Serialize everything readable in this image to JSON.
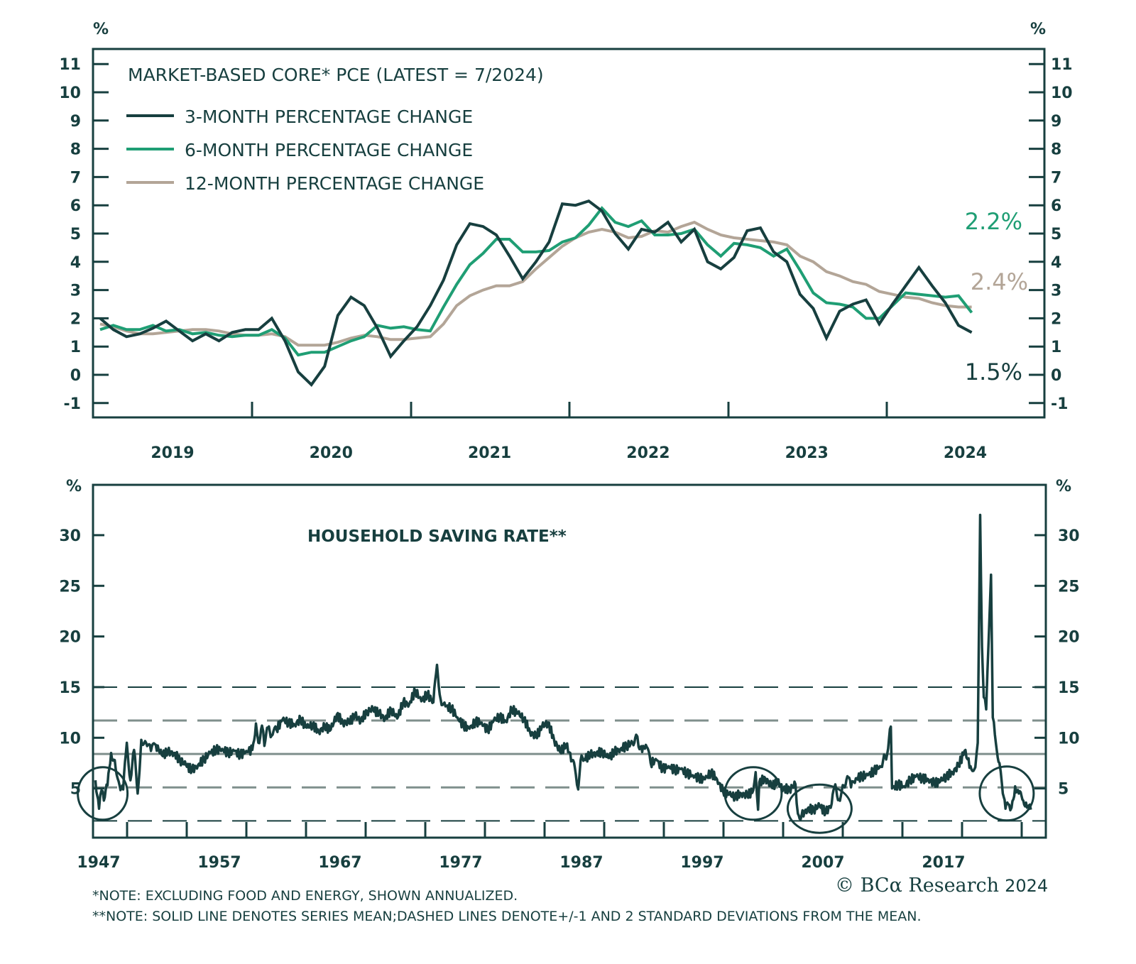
{
  "colors": {
    "dark": "#173f3f",
    "green": "#1f9e74",
    "taupe": "#b3a597",
    "grey_line": "#7f8f8c"
  },
  "chart_data": [
    {
      "type": "line",
      "title": "MARKET-BASED CORE* PCE (LATEST = 7/2024)",
      "ylabel_left": "%",
      "ylabel_right": "%",
      "ylim": [
        -1,
        11
      ],
      "yticks": [
        "11",
        "10",
        "9",
        "8",
        "7",
        "6",
        "5",
        "4",
        "3",
        "2",
        "1",
        "0",
        "-1"
      ],
      "x_tick_labels": [
        "2019",
        "2020",
        "2021",
        "2022",
        "2023",
        "2024"
      ],
      "x_start": "2019-01",
      "x_end": "2024-07",
      "frequency": "monthly",
      "legend_placement": "top-left",
      "series": [
        {
          "name": "3-MONTH PERCENTAGE CHANGE",
          "color_key": "dark",
          "values": [
            2.0,
            1.6,
            1.35,
            1.45,
            1.65,
            1.9,
            1.55,
            1.2,
            1.45,
            1.2,
            1.5,
            1.6,
            1.6,
            2.0,
            1.2,
            0.1,
            -0.35,
            0.3,
            2.1,
            2.75,
            2.45,
            1.65,
            0.65,
            1.2,
            1.7,
            2.45,
            3.35,
            4.6,
            5.35,
            5.25,
            4.95,
            4.2,
            3.4,
            4.0,
            4.7,
            6.05,
            6.0,
            6.15,
            5.8,
            5.0,
            4.45,
            5.15,
            5.05,
            5.4,
            4.7,
            5.15,
            4.0,
            3.75,
            4.15,
            5.1,
            5.2,
            4.35,
            4.0,
            2.85,
            2.35,
            1.3,
            2.25,
            2.5,
            2.65,
            1.8,
            2.5,
            3.15,
            3.8,
            3.15,
            2.55,
            1.75,
            1.5
          ]
        },
        {
          "name": "6-MONTH PERCENTAGE CHANGE",
          "color_key": "green",
          "values": [
            1.6,
            1.75,
            1.6,
            1.6,
            1.75,
            1.55,
            1.6,
            1.45,
            1.5,
            1.4,
            1.35,
            1.4,
            1.4,
            1.6,
            1.3,
            0.7,
            0.8,
            0.8,
            1.0,
            1.2,
            1.35,
            1.75,
            1.65,
            1.7,
            1.6,
            1.55,
            2.4,
            3.2,
            3.9,
            4.3,
            4.8,
            4.8,
            4.35,
            4.35,
            4.4,
            4.7,
            4.85,
            5.3,
            5.9,
            5.4,
            5.25,
            5.45,
            4.95,
            4.95,
            5.0,
            5.15,
            4.6,
            4.2,
            4.65,
            4.6,
            4.5,
            4.2,
            4.45,
            3.7,
            2.9,
            2.55,
            2.5,
            2.4,
            2.0,
            2.0,
            2.45,
            2.9,
            2.85,
            2.8,
            2.75,
            2.8,
            2.2
          ]
        },
        {
          "name": "12-MONTH PERCENTAGE CHANGE",
          "color_key": "taupe",
          "values": [
            1.8,
            1.7,
            1.55,
            1.45,
            1.45,
            1.5,
            1.55,
            1.6,
            1.6,
            1.55,
            1.45,
            1.4,
            1.4,
            1.45,
            1.35,
            1.05,
            1.05,
            1.05,
            1.15,
            1.3,
            1.4,
            1.35,
            1.25,
            1.25,
            1.3,
            1.35,
            1.8,
            2.45,
            2.8,
            3.0,
            3.15,
            3.15,
            3.3,
            3.75,
            4.15,
            4.55,
            4.85,
            5.05,
            5.15,
            5.05,
            4.85,
            4.9,
            5.1,
            5.05,
            5.25,
            5.4,
            5.15,
            4.95,
            4.85,
            4.8,
            4.75,
            4.7,
            4.6,
            4.2,
            4.0,
            3.65,
            3.5,
            3.3,
            3.2,
            2.95,
            2.85,
            2.75,
            2.7,
            2.55,
            2.45,
            2.4,
            2.4
          ]
        }
      ],
      "end_labels": [
        {
          "text": "2.2%",
          "color_key": "green",
          "value": 2.2
        },
        {
          "text": "2.4%",
          "color_key": "taupe",
          "value": 2.4
        },
        {
          "text": "1.5%",
          "color_key": "dark",
          "value": 1.5
        }
      ]
    },
    {
      "type": "line",
      "title": "HOUSEHOLD SAVING RATE**",
      "ylabel_left": "%",
      "ylabel_right": "%",
      "ylim": [
        1.2,
        35.2
      ],
      "yticks": [
        "30",
        "25",
        "20",
        "15",
        "10",
        "5"
      ],
      "x_tick_labels": [
        "1947",
        "1957",
        "1967",
        "1977",
        "1987",
        "1997",
        "2007",
        "2017"
      ],
      "x_range": [
        1946.8,
        2026.5
      ],
      "reference_lines": [
        {
          "name": "+2 SD",
          "value": 15.0,
          "style": "dashed-dark"
        },
        {
          "name": "+1 SD",
          "value": 11.7,
          "style": "dashed-grey"
        },
        {
          "name": "mean",
          "value": 8.4,
          "style": "solid-grey"
        },
        {
          "name": "-1 SD",
          "value": 5.1,
          "style": "dashed-grey"
        },
        {
          "name": "-2 SD",
          "value": 1.8,
          "style": "dashed-dark"
        }
      ],
      "highlight_circles": [
        {
          "year": 1947.6,
          "value": 4.5
        },
        {
          "year": 2001.5,
          "value": 4.5
        },
        {
          "year": 2007.0,
          "value": 3.0
        },
        {
          "year": 2022.5,
          "value": 4.5
        }
      ],
      "series": [
        {
          "name": "HOUSEHOLD SAVING RATE",
          "color_key": "dark",
          "points": [
            [
              1947.0,
              5.8
            ],
            [
              1947.3,
              3.0
            ],
            [
              1947.5,
              4.8
            ],
            [
              1947.7,
              3.8
            ],
            [
              1948.0,
              5.3
            ],
            [
              1948.3,
              8.5
            ],
            [
              1948.6,
              7.8
            ],
            [
              1949.0,
              5.3
            ],
            [
              1949.3,
              4.9
            ],
            [
              1949.6,
              9.5
            ],
            [
              1949.9,
              5.8
            ],
            [
              1950.2,
              8.8
            ],
            [
              1950.5,
              4.5
            ],
            [
              1950.8,
              9.8
            ],
            [
              1951.2,
              9.5
            ],
            [
              1951.6,
              8.7
            ],
            [
              1952.0,
              9.3
            ],
            [
              1952.5,
              8.3
            ],
            [
              1953.0,
              8.6
            ],
            [
              1953.5,
              8.5
            ],
            [
              1954.0,
              7.8
            ],
            [
              1954.5,
              7.3
            ],
            [
              1955.0,
              6.8
            ],
            [
              1955.5,
              7.3
            ],
            [
              1956.0,
              7.9
            ],
            [
              1956.5,
              8.5
            ],
            [
              1957.0,
              8.8
            ],
            [
              1957.5,
              8.9
            ],
            [
              1958.0,
              8.5
            ],
            [
              1958.5,
              8.7
            ],
            [
              1959.0,
              8.3
            ],
            [
              1959.5,
              8.7
            ],
            [
              1960.0,
              8.8
            ],
            [
              1960.3,
              11.4
            ],
            [
              1960.5,
              9.5
            ],
            [
              1960.8,
              11.2
            ],
            [
              1961.0,
              9.2
            ],
            [
              1961.3,
              11.0
            ],
            [
              1961.6,
              10.2
            ],
            [
              1962.0,
              10.8
            ],
            [
              1962.5,
              11.8
            ],
            [
              1963.0,
              11.5
            ],
            [
              1963.5,
              11.3
            ],
            [
              1964.0,
              11.8
            ],
            [
              1964.5,
              11.0
            ],
            [
              1965.0,
              11.3
            ],
            [
              1965.5,
              10.6
            ],
            [
              1966.0,
              11.1
            ],
            [
              1966.5,
              10.8
            ],
            [
              1967.0,
              12.3
            ],
            [
              1967.5,
              11.5
            ],
            [
              1968.0,
              11.5
            ],
            [
              1968.5,
              12.2
            ],
            [
              1969.0,
              11.7
            ],
            [
              1969.5,
              12.6
            ],
            [
              1970.0,
              12.8
            ],
            [
              1970.5,
              12.4
            ],
            [
              1971.0,
              11.9
            ],
            [
              1971.5,
              12.8
            ],
            [
              1972.0,
              11.9
            ],
            [
              1972.5,
              13.5
            ],
            [
              1973.0,
              13.3
            ],
            [
              1973.5,
              14.7
            ],
            [
              1974.0,
              13.6
            ],
            [
              1974.5,
              14.3
            ],
            [
              1975.0,
              13.5
            ],
            [
              1975.3,
              17.2
            ],
            [
              1975.6,
              13.8
            ],
            [
              1976.0,
              13.1
            ],
            [
              1976.5,
              12.9
            ],
            [
              1977.0,
              12.0
            ],
            [
              1977.5,
              11.2
            ],
            [
              1978.0,
              10.9
            ],
            [
              1978.5,
              11.6
            ],
            [
              1979.0,
              11.5
            ],
            [
              1979.5,
              10.7
            ],
            [
              1980.0,
              11.7
            ],
            [
              1980.5,
              12.1
            ],
            [
              1981.0,
              11.6
            ],
            [
              1981.5,
              12.8
            ],
            [
              1982.0,
              12.4
            ],
            [
              1982.5,
              11.9
            ],
            [
              1983.0,
              10.6
            ],
            [
              1983.5,
              10.1
            ],
            [
              1984.0,
              11.1
            ],
            [
              1984.5,
              11.5
            ],
            [
              1985.0,
              9.8
            ],
            [
              1985.5,
              8.6
            ],
            [
              1986.0,
              9.3
            ],
            [
              1986.5,
              7.8
            ],
            [
              1986.8,
              6.4
            ],
            [
              1987.0,
              4.9
            ],
            [
              1987.2,
              7.8
            ],
            [
              1987.5,
              7.9
            ],
            [
              1988.0,
              8.3
            ],
            [
              1988.5,
              8.5
            ],
            [
              1989.0,
              8.6
            ],
            [
              1989.5,
              8.0
            ],
            [
              1990.0,
              8.6
            ],
            [
              1990.5,
              8.9
            ],
            [
              1991.0,
              9.2
            ],
            [
              1991.5,
              9.5
            ],
            [
              1991.8,
              10.3
            ],
            [
              1992.0,
              9.1
            ],
            [
              1992.3,
              8.6
            ],
            [
              1992.6,
              9.3
            ],
            [
              1993.0,
              7.5
            ],
            [
              1993.5,
              7.8
            ],
            [
              1994.0,
              6.9
            ],
            [
              1994.5,
              7.2
            ],
            [
              1995.0,
              6.8
            ],
            [
              1995.5,
              6.9
            ],
            [
              1996.0,
              6.5
            ],
            [
              1996.5,
              6.3
            ],
            [
              1997.0,
              6.0
            ],
            [
              1997.5,
              5.9
            ],
            [
              1998.0,
              6.6
            ],
            [
              1998.5,
              5.9
            ],
            [
              1999.0,
              4.7
            ],
            [
              1999.5,
              4.4
            ],
            [
              2000.0,
              4.2
            ],
            [
              2000.5,
              4.5
            ],
            [
              2001.0,
              4.3
            ],
            [
              2001.5,
              4.8
            ],
            [
              2001.7,
              6.6
            ],
            [
              2001.9,
              2.9
            ],
            [
              2002.0,
              5.6
            ],
            [
              2002.5,
              6.0
            ],
            [
              2003.0,
              5.2
            ],
            [
              2003.5,
              5.6
            ],
            [
              2004.0,
              5.0
            ],
            [
              2004.5,
              4.9
            ],
            [
              2005.0,
              5.4
            ],
            [
              2005.2,
              2.5
            ],
            [
              2005.5,
              2.3
            ],
            [
              2006.0,
              3.0
            ],
            [
              2006.5,
              2.9
            ],
            [
              2007.0,
              3.3
            ],
            [
              2007.5,
              2.6
            ],
            [
              2008.0,
              3.5
            ],
            [
              2008.3,
              5.4
            ],
            [
              2008.6,
              3.9
            ],
            [
              2009.0,
              5.3
            ],
            [
              2009.3,
              6.2
            ],
            [
              2009.6,
              5.1
            ],
            [
              2010.0,
              6.0
            ],
            [
              2010.5,
              6.2
            ],
            [
              2011.0,
              6.3
            ],
            [
              2011.5,
              6.7
            ],
            [
              2012.0,
              7.2
            ],
            [
              2012.6,
              8.4
            ],
            [
              2012.9,
              11.1
            ],
            [
              2013.0,
              5.0
            ],
            [
              2013.5,
              5.4
            ],
            [
              2014.0,
              5.2
            ],
            [
              2014.5,
              5.8
            ],
            [
              2015.0,
              6.2
            ],
            [
              2015.5,
              6.0
            ],
            [
              2016.0,
              5.9
            ],
            [
              2016.5,
              5.5
            ],
            [
              2017.0,
              5.7
            ],
            [
              2017.5,
              6.2
            ],
            [
              2018.0,
              6.6
            ],
            [
              2018.5,
              7.2
            ],
            [
              2019.0,
              8.7
            ],
            [
              2019.5,
              7.2
            ],
            [
              2019.9,
              7.1
            ],
            [
              2020.1,
              9.5
            ],
            [
              2020.3,
              32.0
            ],
            [
              2020.45,
              19.0
            ],
            [
              2020.6,
              14.0
            ],
            [
              2020.8,
              12.8
            ],
            [
              2021.0,
              19.5
            ],
            [
              2021.2,
              26.1
            ],
            [
              2021.35,
              12.0
            ],
            [
              2021.6,
              9.5
            ],
            [
              2021.9,
              7.5
            ],
            [
              2022.1,
              5.5
            ],
            [
              2022.4,
              3.0
            ],
            [
              2022.7,
              3.4
            ],
            [
              2022.9,
              3.1
            ],
            [
              2023.2,
              5.2
            ],
            [
              2023.5,
              4.5
            ],
            [
              2023.8,
              3.9
            ],
            [
              2024.1,
              3.6
            ],
            [
              2024.5,
              2.9
            ]
          ]
        }
      ]
    }
  ],
  "notes": {
    "note1": "*NOTE: EXCLUDING FOOD AND ENERGY, SHOWN ANNUALIZED.",
    "note2": "**NOTE: SOLID LINE DENOTES SERIES MEAN;DASHED LINES DENOTE+/-1 AND 2 STANDARD DEVIATIONS FROM THE MEAN."
  },
  "brand": {
    "copyright": "© BCα Research",
    "year": "2024"
  }
}
